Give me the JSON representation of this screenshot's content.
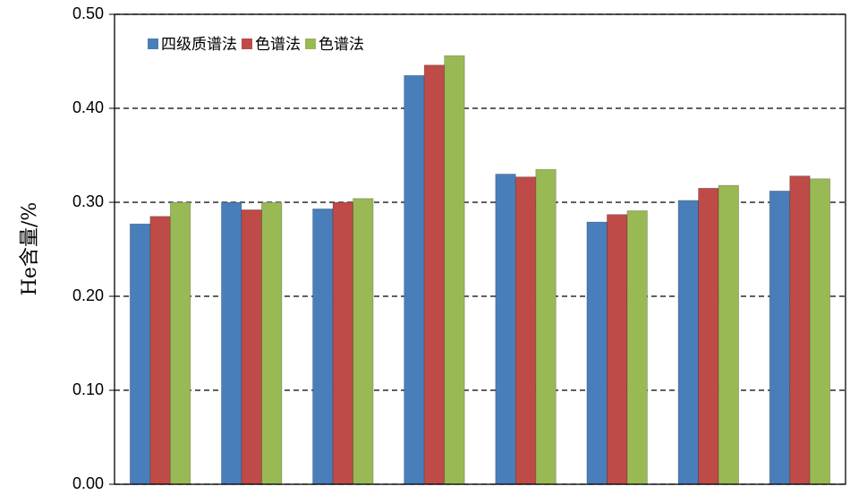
{
  "chart_data": {
    "type": "bar",
    "y_label": "He含量/%",
    "categories": [
      null,
      null,
      null,
      null,
      null,
      null,
      null,
      null
    ],
    "series": [
      {
        "name": "四级质谱法",
        "color": "#4a7ebb",
        "values": [
          0.277,
          0.3,
          0.293,
          0.435,
          0.33,
          0.279,
          0.302,
          0.312
        ]
      },
      {
        "name": "色谱法",
        "color": "#be4b48",
        "values": [
          0.285,
          0.292,
          0.3,
          0.446,
          0.327,
          0.287,
          0.315,
          0.328
        ]
      },
      {
        "name": "色谱法",
        "color": "#98b954",
        "values": [
          0.3,
          0.3,
          0.304,
          0.456,
          0.335,
          0.291,
          0.318,
          0.325
        ]
      }
    ],
    "ylim": [
      0,
      0.5
    ],
    "yticks": [
      {
        "value": 0,
        "label": "0.00"
      },
      {
        "value": 0.1,
        "label": "0.10"
      },
      {
        "value": 0.2,
        "label": "0.20"
      },
      {
        "value": 0.3,
        "label": "0.30"
      },
      {
        "value": 0.4,
        "label": "0.40"
      },
      {
        "value": 0.5,
        "label": "0.50"
      }
    ],
    "grid": true
  }
}
